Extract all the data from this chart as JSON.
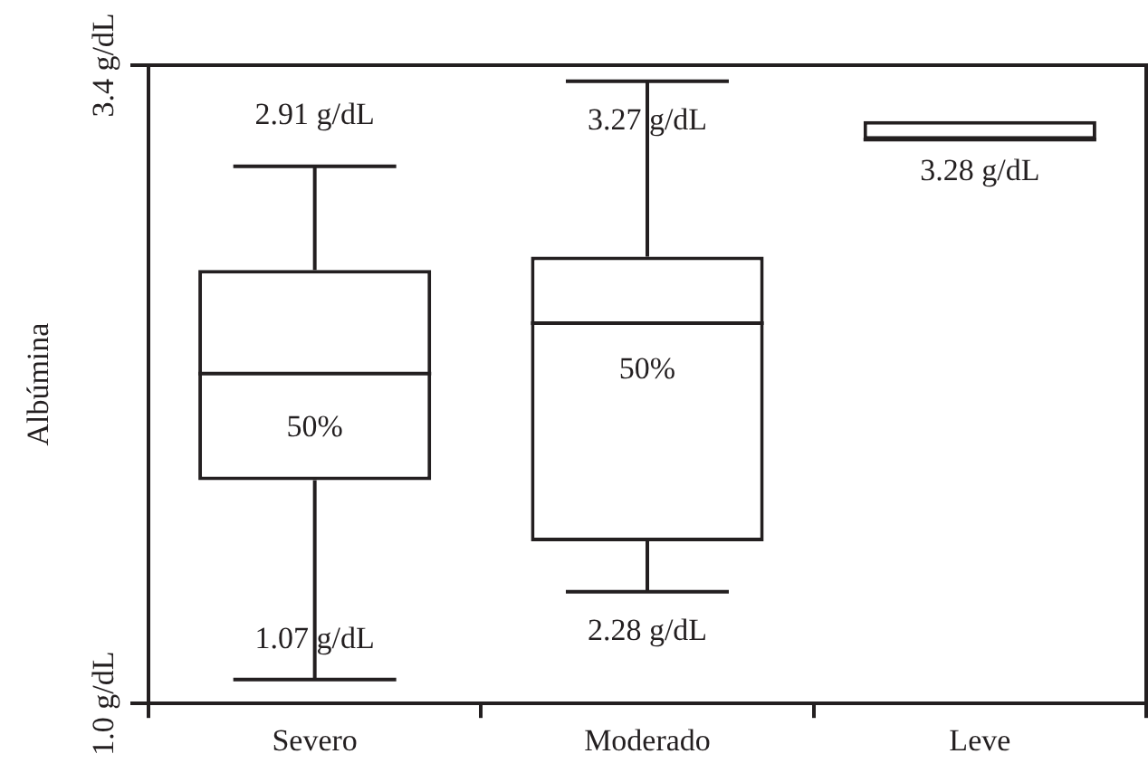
{
  "chart_data": {
    "type": "box",
    "ylabel": "Albúmina",
    "categories": [
      "Severo",
      "Moderado",
      "Leve"
    ],
    "color": "#231f20",
    "boxes": [
      {
        "low": 1.09,
        "q1": 1.84,
        "median": 2.24,
        "q3": 2.63,
        "high": 3.02
      },
      {
        "low": 1.42,
        "q1": 1.61,
        "median": 2.43,
        "q3": 2.68,
        "high": 3.34
      },
      {
        "low": 3.12,
        "q1": 3.12,
        "median": 3.12,
        "q3": 3.19,
        "high": 3.19
      }
    ],
    "ylim": [
      1.0,
      3.4
    ],
    "yticks": [
      {
        "value": 1.0,
        "label": "1.0 g/dL"
      },
      {
        "value": 3.4,
        "label": "3.4 g/dL"
      }
    ],
    "grid": false,
    "legend": false,
    "annotations": [
      "2.91 g/dL",
      "50%",
      "1.07 g/dL",
      "3.27 g/dL",
      "50%",
      "2.28 g/dL",
      "3.28 g/dL"
    ]
  }
}
